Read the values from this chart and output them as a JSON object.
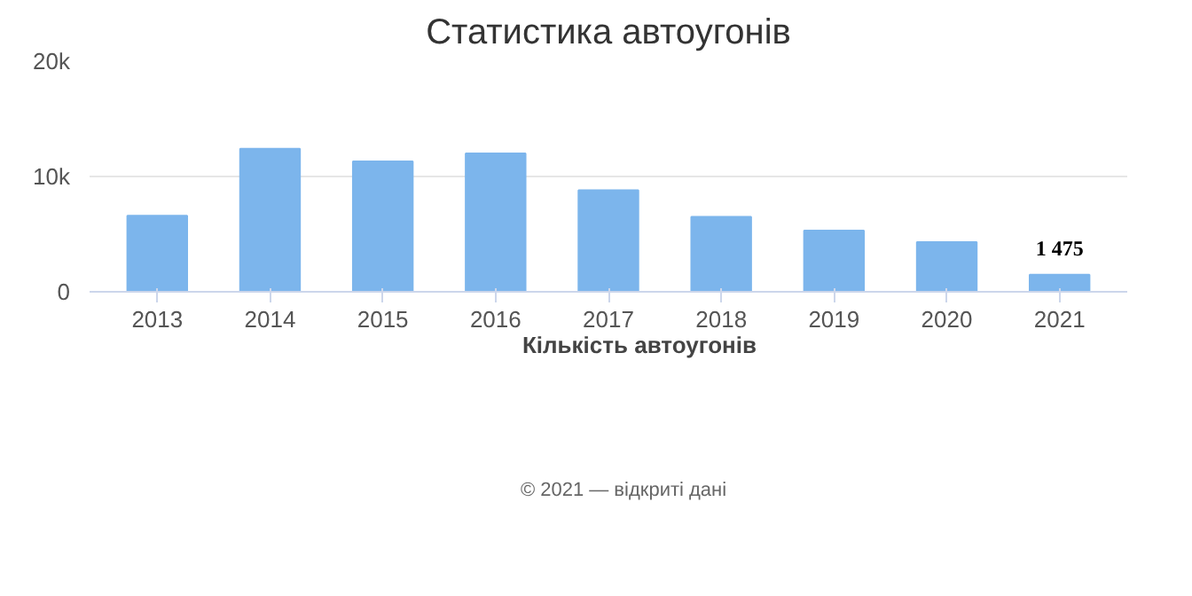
{
  "chart_data": {
    "type": "bar",
    "title": "Статистика автоугонів",
    "categories": [
      "2013",
      "2014",
      "2015",
      "2016",
      "2017",
      "2018",
      "2019",
      "2020",
      "2021"
    ],
    "series": [
      {
        "name": "Кількість автоугонів",
        "color": "#7cb5ec",
        "values": [
          6600,
          12400,
          11300,
          12000,
          8800,
          6500,
          5300,
          4300,
          1475
        ],
        "value_labels": [
          null,
          null,
          null,
          null,
          null,
          null,
          null,
          null,
          "1 475"
        ]
      }
    ],
    "ylim": [
      0,
      20000
    ],
    "yticks": [
      {
        "value": 0,
        "label": "0"
      },
      {
        "value": 10000,
        "label": "10k"
      },
      {
        "value": 20000,
        "label": "20k"
      }
    ],
    "grid": "y",
    "legend": "bottom",
    "annotations": [
      "© 2021 — відкриті дані"
    ]
  }
}
